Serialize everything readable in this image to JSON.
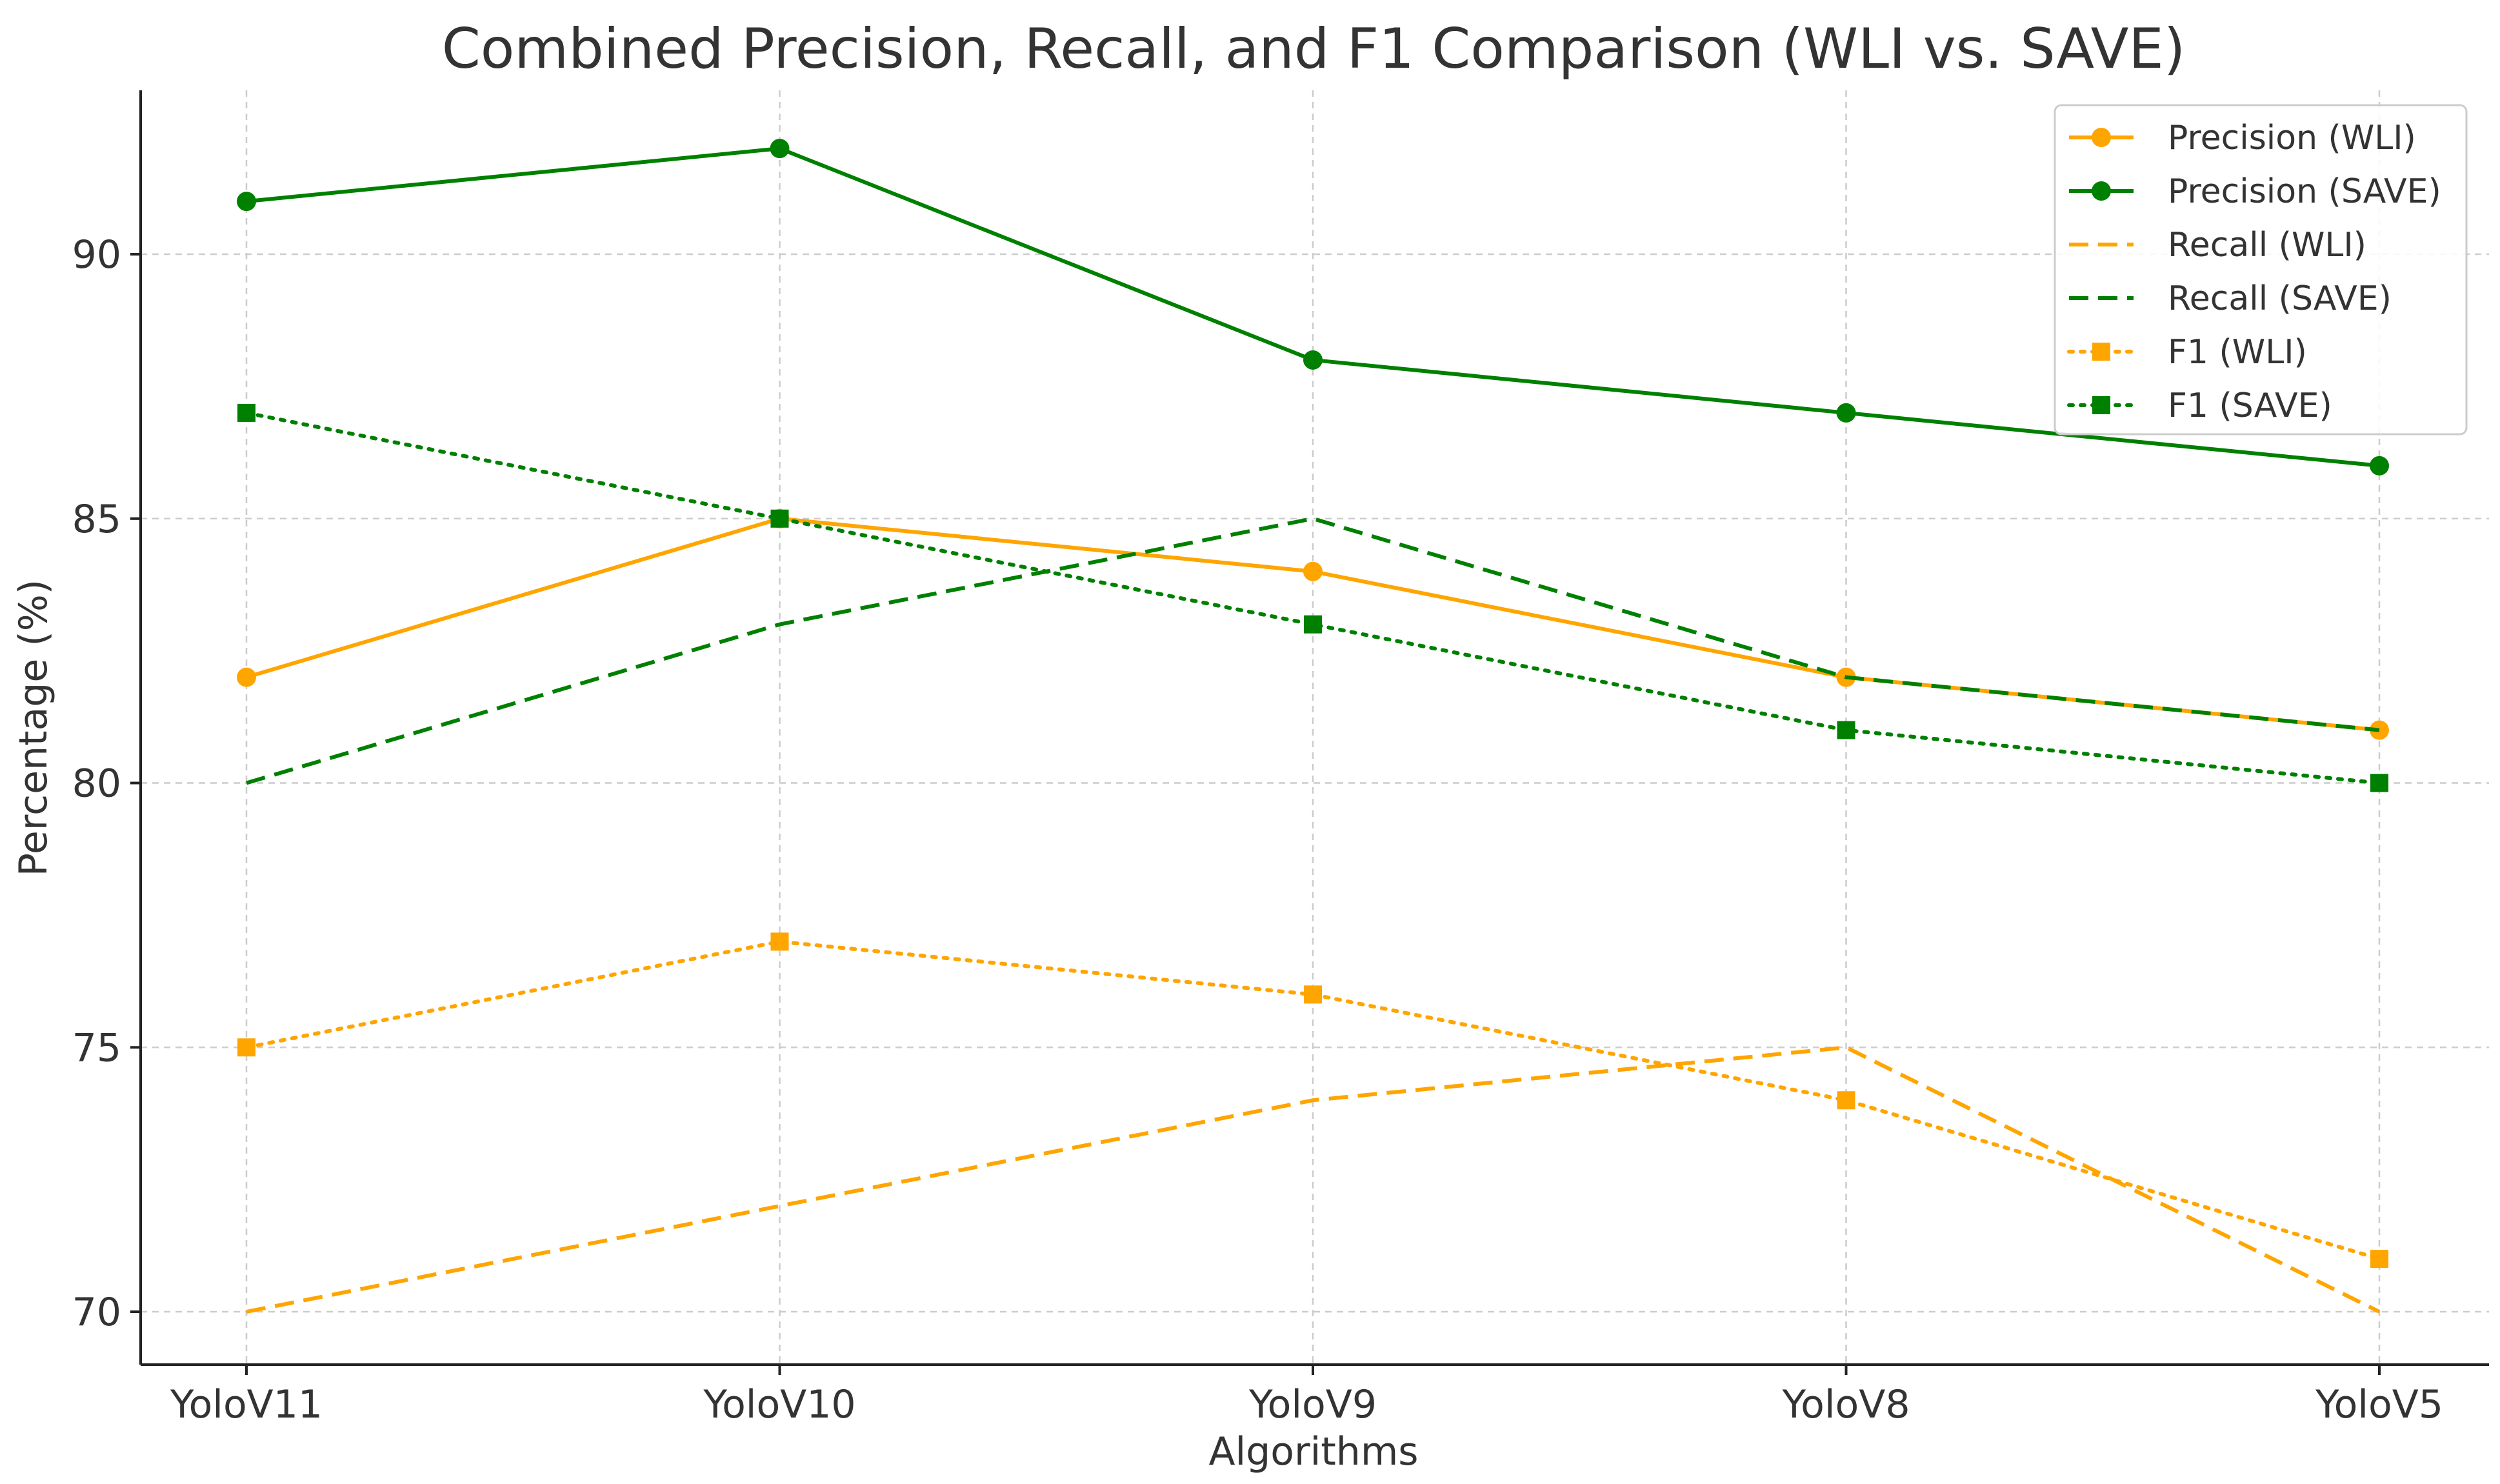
{
  "chart_data": {
    "type": "line",
    "title": "Combined Precision, Recall, and F1 Comparison (WLI vs. SAVE)",
    "xlabel": "Algorithms",
    "ylabel": "Percentage (%)",
    "categories": [
      "YoloV11",
      "YoloV10",
      "YoloV9",
      "YoloV8",
      "YoloV5"
    ],
    "ylim": [
      69,
      93.1
    ],
    "yticks": [
      70,
      75,
      80,
      85,
      90
    ],
    "grid": true,
    "legend_position": "top-right",
    "series": [
      {
        "name": "Precision (WLI)",
        "values": [
          82,
          85,
          84,
          82,
          81
        ],
        "color": "#FFA500",
        "line_style": "solid",
        "marker": "circle"
      },
      {
        "name": "Precision (SAVE)",
        "values": [
          91,
          92,
          88,
          87,
          86
        ],
        "color": "#008000",
        "line_style": "solid",
        "marker": "circle"
      },
      {
        "name": "Recall (WLI)",
        "values": [
          70,
          72,
          74,
          75,
          70
        ],
        "color": "#FFA500",
        "line_style": "dashed",
        "marker": "none"
      },
      {
        "name": "Recall (SAVE)",
        "values": [
          80,
          83,
          85,
          82,
          81
        ],
        "color": "#008000",
        "line_style": "dashed",
        "marker": "none"
      },
      {
        "name": "F1 (WLI)",
        "values": [
          75,
          77,
          76,
          74,
          71
        ],
        "color": "#FFA500",
        "line_style": "dotted",
        "marker": "square"
      },
      {
        "name": "F1 (SAVE)",
        "values": [
          87,
          85,
          83,
          81,
          80
        ],
        "color": "#008000",
        "line_style": "dotted",
        "marker": "square"
      }
    ]
  }
}
